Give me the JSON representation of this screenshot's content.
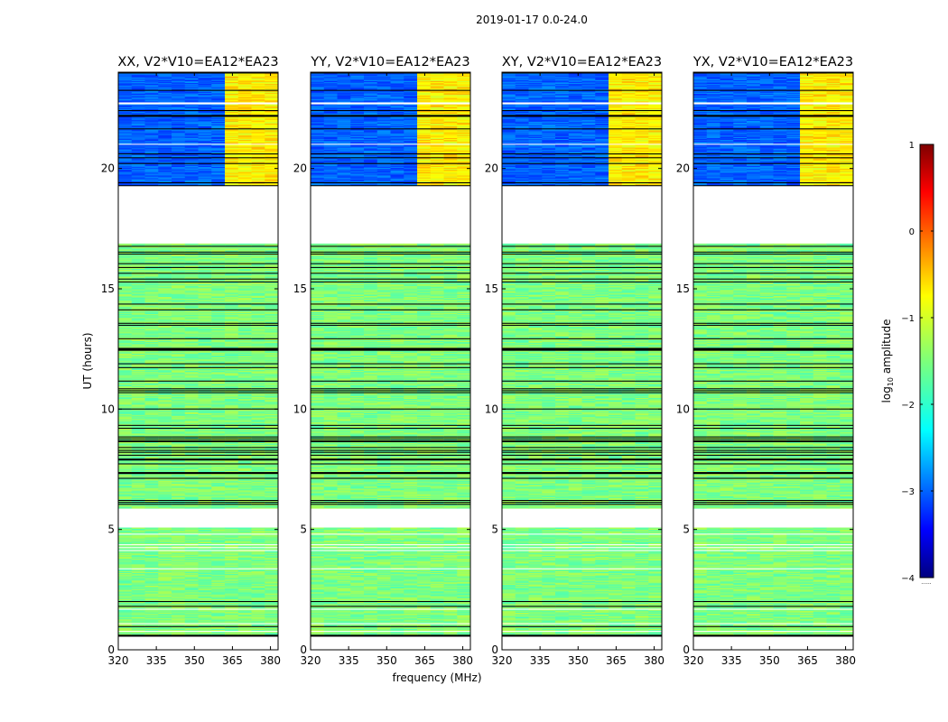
{
  "chart_data": {
    "type": "heatmap",
    "suptitle": "2019-01-17 0.0-24.0",
    "xlabel": "frequency (MHz)",
    "ylabel": "UT (hours)",
    "xlim": [
      320,
      383
    ],
    "ylim": [
      0,
      24
    ],
    "xticks": [
      320,
      335,
      350,
      365,
      380
    ],
    "yticks": [
      0,
      5,
      10,
      15,
      20
    ],
    "xtick_labels": [
      "320",
      "335",
      "350",
      "365",
      "380"
    ],
    "ytick_labels": [
      "0",
      "5",
      "10",
      "15",
      "20"
    ],
    "panels": [
      {
        "title": "XX, V2*V10=EA12*EA23"
      },
      {
        "title": "YY, V2*V10=EA12*EA23"
      },
      {
        "title": "XY, V2*V10=EA12*EA23"
      },
      {
        "title": "YX, V2*V10=EA12*EA23"
      }
    ],
    "colorbar": {
      "label": "log10 amplitude",
      "label_main": "log",
      "label_sub": "10",
      "label_rest": " amplitude",
      "colormap": "jet",
      "range": [
        -4,
        1
      ],
      "ticks": [
        1,
        0,
        -1,
        -2,
        -3,
        -4
      ],
      "tick_labels": [
        "1",
        "0",
        "−1",
        "−2",
        "−3",
        "−4"
      ],
      "footer": "......"
    },
    "data_description": {
      "no_data_intervals_ut": [
        [
          0.0,
          0.55
        ],
        [
          5.05,
          5.85
        ],
        [
          16.85,
          19.25
        ]
      ],
      "flagged_high_freq_band_mhz": [
        360,
        380
      ],
      "low_amplitude_band_ut": [
        16.85,
        24.0
      ],
      "typical_log10_amplitude": {
        "0_to_16.85_ut": -1.5,
        "16.85_to_24_ut": -2.9,
        "flagged_band": -0.8
      }
    }
  }
}
